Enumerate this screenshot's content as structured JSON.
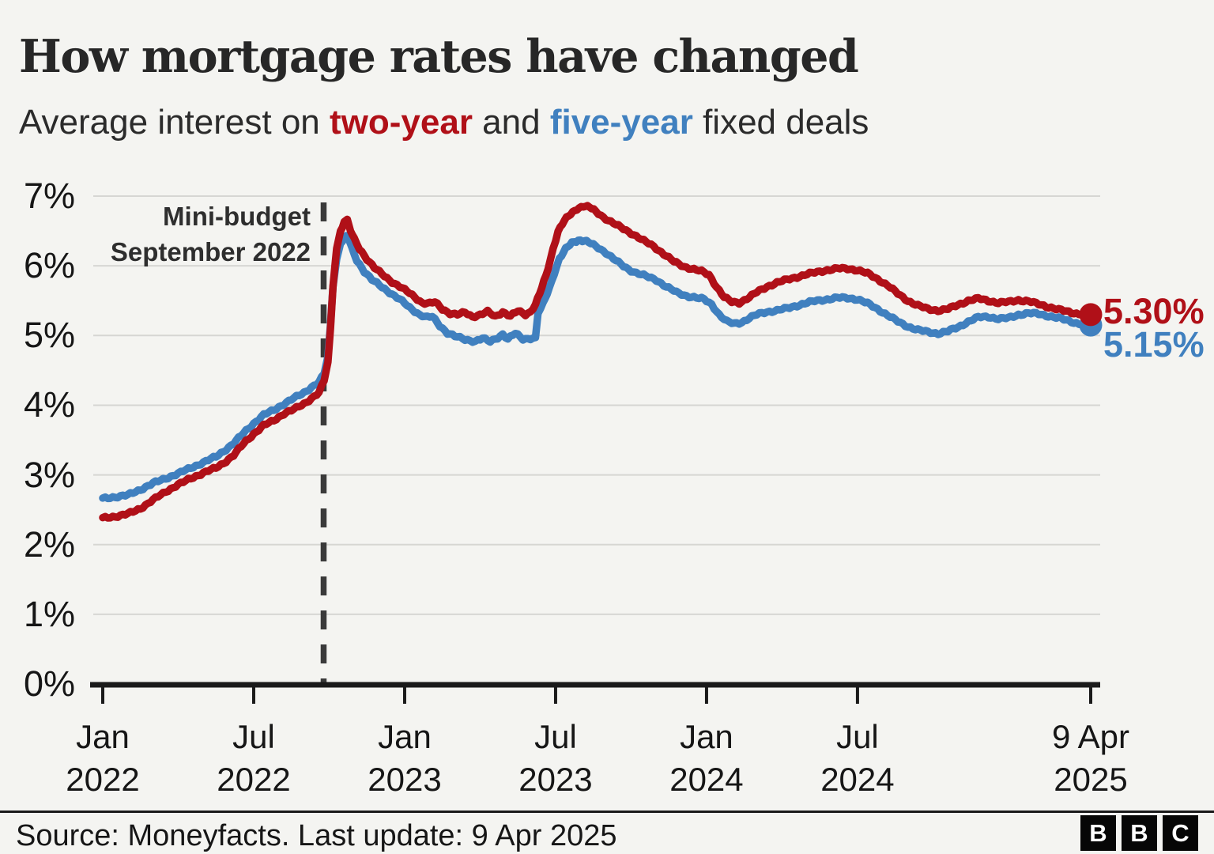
{
  "header": {
    "title": "How mortgage rates have changed",
    "subtitle_prefix": "Average interest on ",
    "subtitle_two_year": "two-year",
    "subtitle_and": " and ",
    "subtitle_five_year": "five-year",
    "subtitle_suffix": " fixed deals"
  },
  "annotation": {
    "line1": "Mini-budget",
    "line2": "September 2022"
  },
  "colors": {
    "two_year": "#b01018",
    "five_year": "#4080bf",
    "background": "#f4f4f1",
    "grid": "#d6d6d3",
    "axis": "#1a1a1a",
    "dashed_line": "#3a3a3a",
    "text": "#1a1a1a"
  },
  "footer": {
    "source": "Source: Moneyfacts. Last update: 9 Apr 2025",
    "logo_letters": [
      "B",
      "B",
      "C"
    ]
  },
  "chart_data": {
    "type": "line",
    "title": "How mortgage rates have changed",
    "subtitle": "Average interest on two-year and five-year fixed deals",
    "x_unit": "months since Jan 2022",
    "xlim": [
      0,
      39.27
    ],
    "ylim": [
      0,
      7
    ],
    "grid": true,
    "legend_position": "end-of-line labels",
    "x_ticks": [
      {
        "m": 0,
        "line1": "Jan",
        "line2": "2022"
      },
      {
        "m": 6,
        "line1": "Jul",
        "line2": "2022"
      },
      {
        "m": 12,
        "line1": "Jan",
        "line2": "2023"
      },
      {
        "m": 18,
        "line1": "Jul",
        "line2": "2023"
      },
      {
        "m": 24,
        "line1": "Jan",
        "line2": "2024"
      },
      {
        "m": 30,
        "line1": "Jul",
        "line2": "2024"
      },
      {
        "m": 39.27,
        "line1": "9 Apr",
        "line2": "2025"
      }
    ],
    "y_ticks": [
      {
        "v": 0,
        "label": "0%"
      },
      {
        "v": 1,
        "label": "1%"
      },
      {
        "v": 2,
        "label": "2%"
      },
      {
        "v": 3,
        "label": "3%"
      },
      {
        "v": 4,
        "label": "4%"
      },
      {
        "v": 5,
        "label": "5%"
      },
      {
        "v": 6,
        "label": "6%"
      },
      {
        "v": 7,
        "label": "7%"
      }
    ],
    "vline": {
      "m": 8.78,
      "style": "dashed",
      "label": "Mini-budget September 2022"
    },
    "series": [
      {
        "name": "two-year",
        "color": "#b01018",
        "end_label": "5.30%",
        "end_value": 5.3,
        "points": [
          [
            0,
            2.38
          ],
          [
            0.6,
            2.41
          ],
          [
            1,
            2.44
          ],
          [
            1.5,
            2.52
          ],
          [
            2,
            2.64
          ],
          [
            2.5,
            2.76
          ],
          [
            3,
            2.86
          ],
          [
            3.5,
            2.95
          ],
          [
            4,
            3.03
          ],
          [
            4.5,
            3.1
          ],
          [
            4.8,
            3.17
          ],
          [
            5.2,
            3.28
          ],
          [
            5.6,
            3.45
          ],
          [
            6,
            3.59
          ],
          [
            6.4,
            3.71
          ],
          [
            6.8,
            3.78
          ],
          [
            7.2,
            3.88
          ],
          [
            7.6,
            3.94
          ],
          [
            8,
            4.02
          ],
          [
            8.3,
            4.1
          ],
          [
            8.6,
            4.18
          ],
          [
            8.8,
            4.35
          ],
          [
            8.95,
            4.62
          ],
          [
            9.05,
            5.1
          ],
          [
            9.15,
            5.7
          ],
          [
            9.3,
            6.25
          ],
          [
            9.45,
            6.5
          ],
          [
            9.6,
            6.63
          ],
          [
            9.72,
            6.65
          ],
          [
            9.85,
            6.5
          ],
          [
            10,
            6.38
          ],
          [
            10.2,
            6.25
          ],
          [
            10.5,
            6.1
          ],
          [
            10.8,
            5.97
          ],
          [
            11.1,
            5.88
          ],
          [
            11.5,
            5.77
          ],
          [
            11.9,
            5.68
          ],
          [
            12.3,
            5.58
          ],
          [
            12.7,
            5.47
          ],
          [
            13,
            5.46
          ],
          [
            13.2,
            5.48
          ],
          [
            13.5,
            5.38
          ],
          [
            13.8,
            5.32
          ],
          [
            14.1,
            5.3
          ],
          [
            14.4,
            5.33
          ],
          [
            14.7,
            5.27
          ],
          [
            15,
            5.3
          ],
          [
            15.3,
            5.34
          ],
          [
            15.6,
            5.27
          ],
          [
            15.9,
            5.34
          ],
          [
            16.2,
            5.28
          ],
          [
            16.5,
            5.35
          ],
          [
            16.8,
            5.3
          ],
          [
            17,
            5.34
          ],
          [
            17.2,
            5.45
          ],
          [
            17.45,
            5.68
          ],
          [
            17.7,
            5.95
          ],
          [
            17.9,
            6.25
          ],
          [
            18.1,
            6.5
          ],
          [
            18.35,
            6.65
          ],
          [
            18.6,
            6.74
          ],
          [
            18.85,
            6.82
          ],
          [
            19.1,
            6.86
          ],
          [
            19.35,
            6.84
          ],
          [
            19.6,
            6.78
          ],
          [
            19.9,
            6.7
          ],
          [
            20.2,
            6.63
          ],
          [
            20.5,
            6.57
          ],
          [
            20.8,
            6.51
          ],
          [
            21.1,
            6.45
          ],
          [
            21.5,
            6.36
          ],
          [
            21.9,
            6.28
          ],
          [
            22.3,
            6.17
          ],
          [
            22.7,
            6.06
          ],
          [
            23.1,
            5.99
          ],
          [
            23.5,
            5.95
          ],
          [
            23.8,
            5.92
          ],
          [
            24.1,
            5.87
          ],
          [
            24.4,
            5.7
          ],
          [
            24.7,
            5.55
          ],
          [
            25,
            5.48
          ],
          [
            25.3,
            5.47
          ],
          [
            25.7,
            5.55
          ],
          [
            26,
            5.62
          ],
          [
            26.4,
            5.7
          ],
          [
            26.8,
            5.76
          ],
          [
            27.2,
            5.8
          ],
          [
            27.6,
            5.84
          ],
          [
            28,
            5.88
          ],
          [
            28.4,
            5.91
          ],
          [
            28.8,
            5.94
          ],
          [
            29.2,
            5.96
          ],
          [
            29.6,
            5.96
          ],
          [
            30,
            5.94
          ],
          [
            30.4,
            5.89
          ],
          [
            30.8,
            5.81
          ],
          [
            31.2,
            5.72
          ],
          [
            31.6,
            5.6
          ],
          [
            32,
            5.5
          ],
          [
            32.4,
            5.43
          ],
          [
            32.8,
            5.38
          ],
          [
            33.2,
            5.36
          ],
          [
            33.6,
            5.38
          ],
          [
            34,
            5.44
          ],
          [
            34.4,
            5.5
          ],
          [
            34.8,
            5.53
          ],
          [
            35.2,
            5.5
          ],
          [
            35.6,
            5.47
          ],
          [
            36,
            5.48
          ],
          [
            36.4,
            5.51
          ],
          [
            36.8,
            5.49
          ],
          [
            37.2,
            5.45
          ],
          [
            37.6,
            5.41
          ],
          [
            38,
            5.37
          ],
          [
            38.4,
            5.34
          ],
          [
            38.8,
            5.31
          ],
          [
            39.27,
            5.3
          ]
        ]
      },
      {
        "name": "five-year",
        "color": "#4080bf",
        "end_label": "5.15%",
        "end_value": 5.15,
        "points": [
          [
            0,
            2.66
          ],
          [
            0.6,
            2.69
          ],
          [
            1,
            2.71
          ],
          [
            1.5,
            2.79
          ],
          [
            2,
            2.88
          ],
          [
            2.5,
            2.95
          ],
          [
            3,
            3.02
          ],
          [
            3.5,
            3.1
          ],
          [
            4,
            3.18
          ],
          [
            4.5,
            3.26
          ],
          [
            4.8,
            3.34
          ],
          [
            5.2,
            3.45
          ],
          [
            5.6,
            3.6
          ],
          [
            6,
            3.74
          ],
          [
            6.4,
            3.86
          ],
          [
            6.8,
            3.93
          ],
          [
            7.2,
            4.02
          ],
          [
            7.6,
            4.1
          ],
          [
            8,
            4.18
          ],
          [
            8.3,
            4.26
          ],
          [
            8.6,
            4.33
          ],
          [
            8.8,
            4.45
          ],
          [
            8.95,
            4.7
          ],
          [
            9.05,
            5.15
          ],
          [
            9.15,
            5.7
          ],
          [
            9.3,
            6.1
          ],
          [
            9.45,
            6.32
          ],
          [
            9.6,
            6.41
          ],
          [
            9.75,
            6.42
          ],
          [
            9.9,
            6.25
          ],
          [
            10.1,
            6.08
          ],
          [
            10.4,
            5.92
          ],
          [
            10.7,
            5.8
          ],
          [
            11,
            5.72
          ],
          [
            11.4,
            5.62
          ],
          [
            11.8,
            5.52
          ],
          [
            12.2,
            5.4
          ],
          [
            12.6,
            5.3
          ],
          [
            12.9,
            5.26
          ],
          [
            13.1,
            5.27
          ],
          [
            13.4,
            5.14
          ],
          [
            13.7,
            5.04
          ],
          [
            14,
            4.99
          ],
          [
            14.4,
            4.94
          ],
          [
            14.8,
            4.92
          ],
          [
            15.1,
            4.96
          ],
          [
            15.4,
            4.91
          ],
          [
            15.7,
            4.97
          ],
          [
            15.9,
            5.02
          ],
          [
            16.1,
            4.95
          ],
          [
            16.4,
            5.03
          ],
          [
            16.7,
            4.95
          ],
          [
            17,
            4.96
          ],
          [
            17.2,
            4.97
          ],
          [
            17.3,
            5.32
          ],
          [
            17.5,
            5.45
          ],
          [
            17.75,
            5.68
          ],
          [
            17.95,
            5.9
          ],
          [
            18.15,
            6.1
          ],
          [
            18.4,
            6.24
          ],
          [
            18.65,
            6.33
          ],
          [
            18.9,
            6.37
          ],
          [
            19.15,
            6.36
          ],
          [
            19.4,
            6.32
          ],
          [
            19.7,
            6.26
          ],
          [
            20,
            6.19
          ],
          [
            20.3,
            6.1
          ],
          [
            20.6,
            6.02
          ],
          [
            20.9,
            5.95
          ],
          [
            21.2,
            5.9
          ],
          [
            21.6,
            5.85
          ],
          [
            22,
            5.8
          ],
          [
            22.4,
            5.7
          ],
          [
            22.8,
            5.62
          ],
          [
            23.2,
            5.57
          ],
          [
            23.6,
            5.54
          ],
          [
            23.9,
            5.52
          ],
          [
            24.2,
            5.45
          ],
          [
            24.5,
            5.3
          ],
          [
            24.8,
            5.2
          ],
          [
            25.1,
            5.17
          ],
          [
            25.4,
            5.19
          ],
          [
            25.7,
            5.25
          ],
          [
            26,
            5.3
          ],
          [
            26.4,
            5.34
          ],
          [
            26.8,
            5.36
          ],
          [
            27.2,
            5.39
          ],
          [
            27.6,
            5.43
          ],
          [
            28,
            5.47
          ],
          [
            28.4,
            5.5
          ],
          [
            28.8,
            5.52
          ],
          [
            29.2,
            5.54
          ],
          [
            29.6,
            5.54
          ],
          [
            30,
            5.52
          ],
          [
            30.4,
            5.46
          ],
          [
            30.8,
            5.38
          ],
          [
            31.2,
            5.29
          ],
          [
            31.6,
            5.2
          ],
          [
            32,
            5.13
          ],
          [
            32.4,
            5.08
          ],
          [
            32.8,
            5.05
          ],
          [
            33.2,
            5.03
          ],
          [
            33.6,
            5.06
          ],
          [
            34,
            5.12
          ],
          [
            34.4,
            5.2
          ],
          [
            34.8,
            5.26
          ],
          [
            35.2,
            5.27
          ],
          [
            35.6,
            5.24
          ],
          [
            36,
            5.25
          ],
          [
            36.4,
            5.3
          ],
          [
            36.8,
            5.32
          ],
          [
            37.2,
            5.31
          ],
          [
            37.6,
            5.28
          ],
          [
            38,
            5.25
          ],
          [
            38.4,
            5.21
          ],
          [
            38.8,
            5.17
          ],
          [
            39.27,
            5.15
          ]
        ]
      }
    ]
  }
}
